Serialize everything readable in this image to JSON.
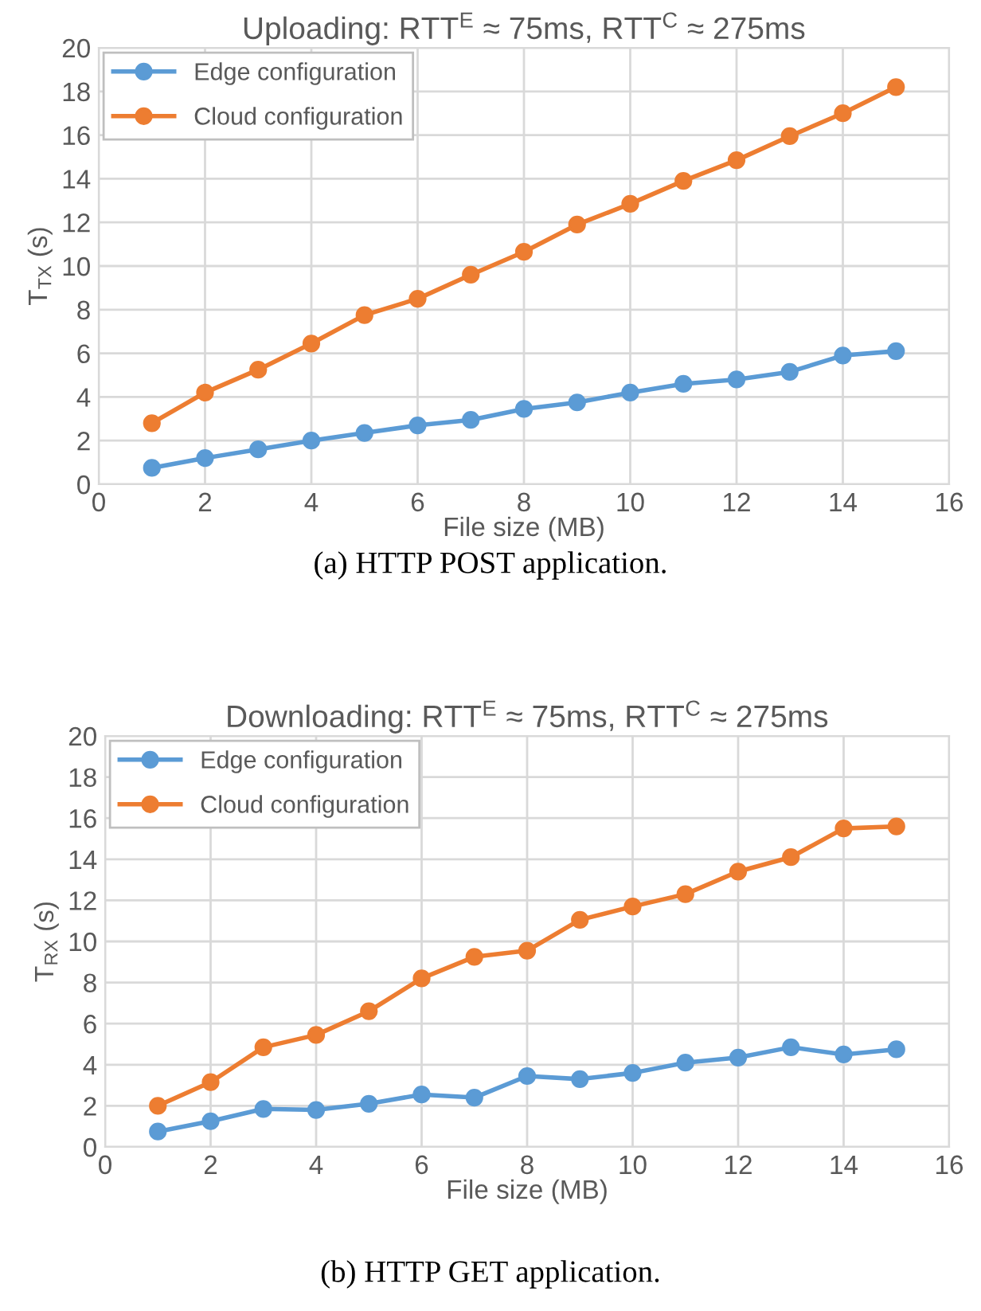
{
  "chart_data": [
    {
      "type": "line",
      "title": "Uploading: RTT$^{E}$ ≈ 75ms, RTT$^{C}$ ≈ 275ms",
      "xlabel": "File size (MB)",
      "ylabel": "T$_{TX}$ (s)",
      "annotations": [
        "(a) HTTP POST application."
      ],
      "x": [
        1,
        2,
        3,
        4,
        5,
        6,
        7,
        8,
        9,
        10,
        11,
        12,
        13,
        14,
        15
      ],
      "series": [
        {
          "name": "Edge configuration",
          "color": "#5b9bd5",
          "values": [
            0.75,
            1.2,
            1.6,
            2.0,
            2.35,
            2.7,
            2.95,
            3.45,
            3.75,
            4.2,
            4.6,
            4.8,
            5.15,
            5.9,
            6.1
          ]
        },
        {
          "name": "Cloud configuration",
          "color": "#ed7d31",
          "values": [
            2.8,
            4.2,
            5.25,
            6.45,
            7.75,
            8.5,
            9.6,
            10.65,
            11.9,
            12.85,
            13.9,
            14.85,
            15.95,
            17.0,
            18.2
          ]
        }
      ],
      "xlim": [
        0,
        16
      ],
      "xticks": [
        0,
        2,
        4,
        6,
        8,
        10,
        12,
        14,
        16
      ],
      "ylim": [
        0,
        20
      ],
      "yticks": [
        0,
        2,
        4,
        6,
        8,
        10,
        12,
        14,
        16,
        18,
        20
      ],
      "grid": true,
      "legend": "top left",
      "marker": "circle",
      "line_style": "solid"
    },
    {
      "type": "line",
      "title": "Downloading: RTT$^{E}$ ≈ 75ms, RTT$^{C}$ ≈ 275ms",
      "xlabel": "File size (MB)",
      "ylabel": "T$_{RX}$ (s)",
      "annotations": [
        "(b) HTTP GET application."
      ],
      "x": [
        1,
        2,
        3,
        4,
        5,
        6,
        7,
        8,
        9,
        10,
        11,
        12,
        13,
        14,
        15
      ],
      "series": [
        {
          "name": "Edge configuration",
          "color": "#5b9bd5",
          "values": [
            0.75,
            1.25,
            1.85,
            1.8,
            2.1,
            2.55,
            2.4,
            3.45,
            3.3,
            3.6,
            4.1,
            4.35,
            4.85,
            4.5,
            4.75
          ]
        },
        {
          "name": "Cloud configuration",
          "color": "#ed7d31",
          "values": [
            2.0,
            3.15,
            4.85,
            5.45,
            6.6,
            8.2,
            9.25,
            9.55,
            11.05,
            11.7,
            12.3,
            13.4,
            14.1,
            15.5,
            15.6
          ]
        }
      ],
      "xlim": [
        0,
        16
      ],
      "xticks": [
        0,
        2,
        4,
        6,
        8,
        10,
        12,
        14,
        16
      ],
      "ylim": [
        0,
        20
      ],
      "yticks": [
        0,
        2,
        4,
        6,
        8,
        10,
        12,
        14,
        16,
        18,
        20
      ],
      "grid": true,
      "legend": "top left",
      "marker": "circle",
      "line_style": "solid"
    }
  ]
}
